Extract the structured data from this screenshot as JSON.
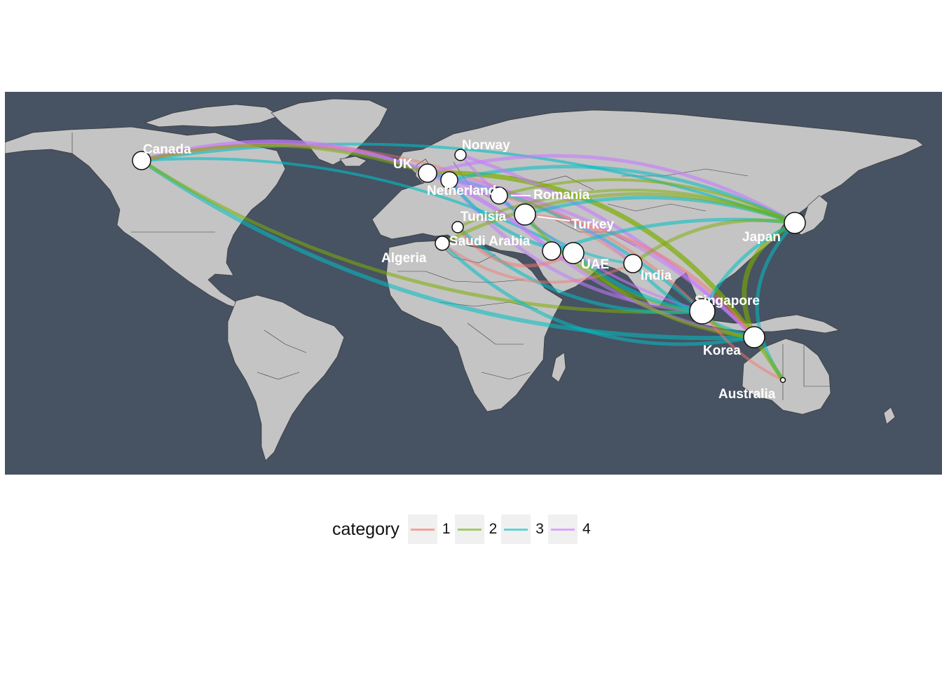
{
  "map": {
    "background_color": "#475262",
    "land_color": "#c4c4c4",
    "border_color": "#3a3a3a",
    "cities": [
      {
        "id": "canada",
        "label": "Canada"
      },
      {
        "id": "uk",
        "label": "UK"
      },
      {
        "id": "norway",
        "label": "Norway"
      },
      {
        "id": "netherlands",
        "label": "Netherlands"
      },
      {
        "id": "romania",
        "label": "Romania"
      },
      {
        "id": "tunisia",
        "label": "Tunisia"
      },
      {
        "id": "turkey",
        "label": "Turkey"
      },
      {
        "id": "saudi-arabia",
        "label": "Saudi Arabia"
      },
      {
        "id": "algeria",
        "label": "Algeria"
      },
      {
        "id": "uae",
        "label": "UAE"
      },
      {
        "id": "india",
        "label": "India"
      },
      {
        "id": "japan",
        "label": "Japan"
      },
      {
        "id": "singapore",
        "label": "Singapore"
      },
      {
        "id": "korea",
        "label": "Korea"
      },
      {
        "id": "australia",
        "label": "Australia"
      }
    ]
  },
  "legend": {
    "title": "category",
    "items": [
      {
        "label": "1",
        "color": "#f8766d"
      },
      {
        "label": "2",
        "color": "#7cae00"
      },
      {
        "label": "3",
        "color": "#00bfc4"
      },
      {
        "label": "4",
        "color": "#c77cff"
      }
    ]
  }
}
